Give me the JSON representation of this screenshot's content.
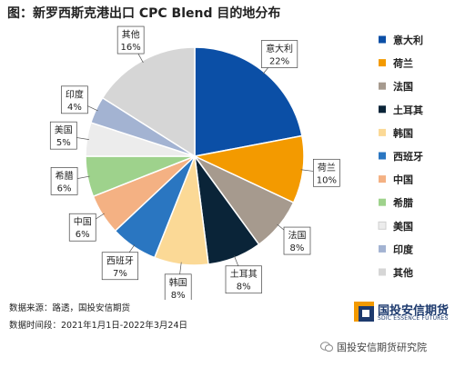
{
  "title": "图：新罗西斯克港出口 CPC Blend 目的地分布",
  "chart_data": {
    "type": "pie",
    "title": "图：新罗西斯克港出口 CPC Blend 目的地分布",
    "legend_position": "right",
    "slices": [
      {
        "name": "意大利",
        "value": 22,
        "label": "22%",
        "color": "#0b4fa6"
      },
      {
        "name": "荷兰",
        "value": 10,
        "label": "10%",
        "color": "#f39a00"
      },
      {
        "name": "法国",
        "value": 8,
        "label": "8%",
        "color": "#a69a8e"
      },
      {
        "name": "土耳其",
        "value": 8,
        "label": "8%",
        "color": "#0a2438"
      },
      {
        "name": "韩国",
        "value": 8,
        "label": "8%",
        "color": "#fbd996"
      },
      {
        "name": "西班牙",
        "value": 7,
        "label": "7%",
        "color": "#2a76c1"
      },
      {
        "name": "中国",
        "value": 6,
        "label": "6%",
        "color": "#f4b183"
      },
      {
        "name": "希腊",
        "value": 6,
        "label": "6%",
        "color": "#9ed28c"
      },
      {
        "name": "美国",
        "value": 5,
        "label": "5%",
        "color": "#ececec"
      },
      {
        "name": "印度",
        "value": 4,
        "label": "4%",
        "color": "#a3b3d2"
      },
      {
        "name": "其他",
        "value": 16,
        "label": "16%",
        "color": "#d6d6d6"
      }
    ]
  },
  "footer": {
    "source": "数据来源：路透，国投安信期货",
    "period": "数据时间段：2021年1月1日-2022年3月24日"
  },
  "logo": {
    "name": "国投安信期货",
    "sub": "SDIC ESSENCE FUTURES"
  },
  "wechat": {
    "account": "国投安信期货研究院"
  }
}
